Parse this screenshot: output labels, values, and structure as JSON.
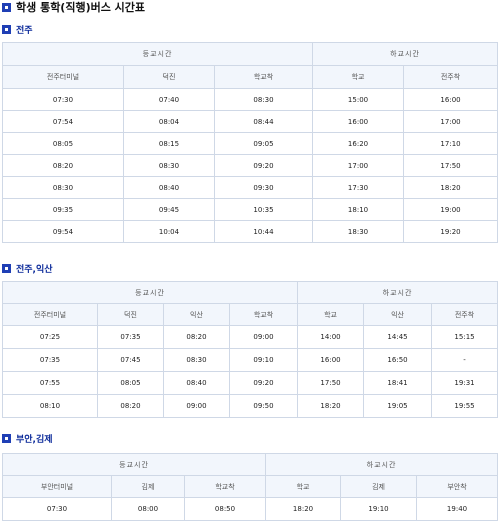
{
  "page_title": "학생 통학(직행)버스 시간표",
  "sections": [
    {
      "title": "전주",
      "group_headers": [
        "등교시간",
        "하교시간"
      ],
      "columns": [
        "전주터미널",
        "덕진",
        "학교착",
        "학교",
        "전주착"
      ],
      "rows": [
        [
          "07:30",
          "07:40",
          "08:30",
          "15:00",
          "16:00"
        ],
        [
          "07:54",
          "08:04",
          "08:44",
          "16:00",
          "17:00"
        ],
        [
          "08:05",
          "08:15",
          "09:05",
          "16:20",
          "17:10"
        ],
        [
          "08:20",
          "08:30",
          "09:20",
          "17:00",
          "17:50"
        ],
        [
          "08:30",
          "08:40",
          "09:30",
          "17:30",
          "18:20"
        ],
        [
          "09:35",
          "09:45",
          "10:35",
          "18:10",
          "19:00"
        ],
        [
          "09:54",
          "10:04",
          "10:44",
          "18:30",
          "19:20"
        ]
      ]
    },
    {
      "title": "전주,익산",
      "group_headers": [
        "등교시간",
        "하교시간"
      ],
      "columns": [
        "전주터미널",
        "덕진",
        "익산",
        "학교착",
        "학교",
        "익산",
        "전주착"
      ],
      "rows": [
        [
          "07:25",
          "07:35",
          "08:20",
          "09:00",
          "14:00",
          "14:45",
          "15:15"
        ],
        [
          "07:35",
          "07:45",
          "08:30",
          "09:10",
          "16:00",
          "16:50",
          "-"
        ],
        [
          "07:55",
          "08:05",
          "08:40",
          "09:20",
          "17:50",
          "18:41",
          "19:31"
        ],
        [
          "08:10",
          "08:20",
          "09:00",
          "09:50",
          "18:20",
          "19:05",
          "19:55"
        ]
      ]
    },
    {
      "title": "부안,김제",
      "group_headers": [
        "등교시간",
        "하교시간"
      ],
      "columns": [
        "부안터미널",
        "김제",
        "학교착",
        "학교",
        "김제",
        "부안착"
      ],
      "rows": [
        [
          "07:30",
          "08:00",
          "08:50",
          "18:20",
          "19:10",
          "19:40"
        ]
      ]
    }
  ]
}
